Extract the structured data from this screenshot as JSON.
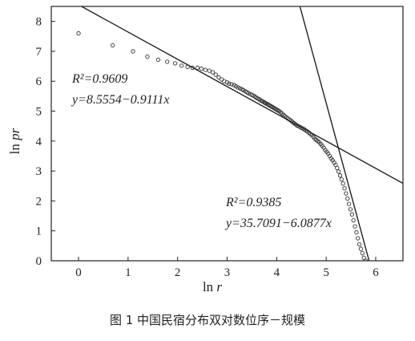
{
  "chart_data": {
    "type": "scatter",
    "caption": "图 1  中国民宿分布双对数位序－规模",
    "xlabel_text": "ln r",
    "ylabel_text": "ln pr",
    "xlim": [
      -0.55,
      6.55
    ],
    "ylim": [
      0,
      8.5
    ],
    "x_ticks": [
      "0",
      "1",
      "2",
      "3",
      "4",
      "5",
      "6"
    ],
    "y_ticks": [
      "0",
      "1",
      "2",
      "3",
      "4",
      "5",
      "6",
      "7",
      "8"
    ],
    "series": [
      {
        "marker": "open-circle",
        "x": [
          0.0,
          0.69,
          1.1,
          1.39,
          1.61,
          1.79,
          1.95,
          2.08,
          2.2,
          2.3,
          2.4,
          2.48,
          2.56,
          2.64,
          2.71,
          2.77,
          2.83,
          2.89,
          2.94,
          3.0,
          3.04,
          3.09,
          3.14,
          3.18,
          3.22,
          3.26,
          3.3,
          3.33,
          3.37,
          3.4,
          3.43,
          3.47,
          3.5,
          3.53,
          3.56,
          3.58,
          3.61,
          3.64,
          3.66,
          3.69,
          3.71,
          3.74,
          3.76,
          3.78,
          3.81,
          3.83,
          3.85,
          3.87,
          3.89,
          3.91,
          3.93,
          3.95,
          3.97,
          3.99,
          4.01,
          4.03,
          4.05,
          4.08,
          4.11,
          4.14,
          4.17,
          4.2,
          4.23,
          4.26,
          4.29,
          4.32,
          4.35,
          4.38,
          4.41,
          4.44,
          4.47,
          4.5,
          4.53,
          4.56,
          4.59,
          4.62,
          4.65,
          4.68,
          4.71,
          4.74,
          4.77,
          4.8,
          4.83,
          4.86,
          4.89,
          4.92,
          4.95,
          4.98,
          5.01,
          5.04,
          5.07,
          5.1,
          5.13,
          5.16,
          5.19,
          5.22,
          5.25,
          5.28,
          5.31,
          5.34,
          5.37,
          5.4,
          5.43,
          5.46,
          5.49,
          5.52,
          5.55,
          5.58,
          5.61,
          5.64,
          5.67,
          5.7,
          5.73,
          5.76,
          5.8
        ],
        "y": [
          7.6,
          7.2,
          7.0,
          6.82,
          6.72,
          6.65,
          6.6,
          6.52,
          6.48,
          6.45,
          6.45,
          6.42,
          6.38,
          6.35,
          6.3,
          6.22,
          6.13,
          6.06,
          6.0,
          5.96,
          5.92,
          5.9,
          5.87,
          5.83,
          5.79,
          5.76,
          5.73,
          5.7,
          5.66,
          5.63,
          5.6,
          5.57,
          5.54,
          5.52,
          5.49,
          5.46,
          5.43,
          5.41,
          5.38,
          5.35,
          5.33,
          5.31,
          5.28,
          5.26,
          5.24,
          5.22,
          5.2,
          5.18,
          5.16,
          5.14,
          5.12,
          5.1,
          5.08,
          5.06,
          5.04,
          5.02,
          5.0,
          4.96,
          4.92,
          4.87,
          4.83,
          4.79,
          4.75,
          4.72,
          4.68,
          4.64,
          4.6,
          4.56,
          4.52,
          4.5,
          4.47,
          4.44,
          4.42,
          4.39,
          4.35,
          4.32,
          4.28,
          4.24,
          4.2,
          4.14,
          4.08,
          4.04,
          4.0,
          3.96,
          3.9,
          3.84,
          3.78,
          3.7,
          3.64,
          3.58,
          3.5,
          3.42,
          3.36,
          3.28,
          3.2,
          3.1,
          2.98,
          2.85,
          2.72,
          2.58,
          2.42,
          2.25,
          2.08,
          1.9,
          1.72,
          1.55,
          1.35,
          1.15,
          0.95,
          0.75,
          0.55,
          0.4,
          0.25,
          0.1,
          0.0
        ]
      }
    ],
    "fit_lines": [
      {
        "r2_label": "R²=0.9609",
        "equation_label": "y=8.5554−0.9111x",
        "intercept": 8.5554,
        "slope": -0.9111,
        "x_range": [
          -0.55,
          6.55
        ]
      },
      {
        "r2_label": "R²=0.9385",
        "equation_label": "y=35.7091−6.0877x",
        "intercept": 35.7091,
        "slope": -6.0877,
        "x_range": [
          4.47,
          5.87
        ]
      }
    ],
    "grid": false
  }
}
